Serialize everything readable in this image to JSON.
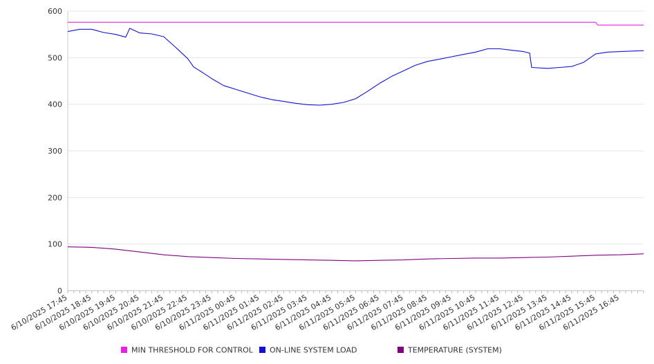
{
  "chart_data": {
    "type": "line",
    "title": "",
    "xlabel": "",
    "ylabel": "",
    "ylim": [
      0,
      600
    ],
    "yticks": [
      0,
      100,
      200,
      300,
      400,
      500,
      600
    ],
    "grid": true,
    "legend_position": "bottom",
    "x_tick_labels": [
      "6/10/2025 17:45",
      "6/10/2025 18:45",
      "6/10/2025 19:45",
      "6/10/2025 20:45",
      "6/10/2025 21:45",
      "6/10/2025 22:45",
      "6/10/2025 23:45",
      "6/11/2025 00:45",
      "6/11/2025 01:45",
      "6/11/2025 02:45",
      "6/11/2025 03:45",
      "6/11/2025 04:45",
      "6/11/2025 05:45",
      "6/11/2025 06:45",
      "6/11/2025 07:45",
      "6/11/2025 08:45",
      "6/11/2025 09:45",
      "6/11/2025 10:45",
      "6/11/2025 11:45",
      "6/11/2025 12:45",
      "6/11/2025 13:45",
      "6/11/2025 14:45",
      "6/11/2025 15:45",
      "6/11/2025 16:45"
    ],
    "x_range": [
      "6/10/2025 17:45",
      "6/11/2025 17:45"
    ],
    "series": [
      {
        "name": "MIN THRESHOLD FOR CONTROL",
        "color": "#e81fe8",
        "points": [
          [
            "6/10/2025 17:45",
            576
          ],
          [
            "6/11/2025 15:45",
            576
          ],
          [
            "6/11/2025 15:50",
            570
          ],
          [
            "6/11/2025 17:45",
            570
          ]
        ]
      },
      {
        "name": "ON-LINE SYSTEM LOAD",
        "color": "#1010d8",
        "points": [
          [
            "6/10/2025 17:45",
            556
          ],
          [
            "6/10/2025 18:15",
            561
          ],
          [
            "6/10/2025 18:45",
            561
          ],
          [
            "6/10/2025 19:15",
            554
          ],
          [
            "6/10/2025 19:45",
            550
          ],
          [
            "6/10/2025 20:10",
            544
          ],
          [
            "6/10/2025 20:20",
            563
          ],
          [
            "6/10/2025 20:45",
            553
          ],
          [
            "6/10/2025 21:15",
            551
          ],
          [
            "6/10/2025 21:45",
            545
          ],
          [
            "6/10/2025 22:15",
            522
          ],
          [
            "6/10/2025 22:45",
            498
          ],
          [
            "6/10/2025 23:00",
            480
          ],
          [
            "6/10/2025 23:15",
            472
          ],
          [
            "6/10/2025 23:45",
            455
          ],
          [
            "6/11/2025 00:15",
            440
          ],
          [
            "6/11/2025 00:45",
            432
          ],
          [
            "6/11/2025 01:15",
            424
          ],
          [
            "6/11/2025 01:45",
            416
          ],
          [
            "6/11/2025 02:15",
            410
          ],
          [
            "6/11/2025 02:45",
            406
          ],
          [
            "6/11/2025 03:15",
            402
          ],
          [
            "6/11/2025 03:45",
            399
          ],
          [
            "6/11/2025 04:15",
            398
          ],
          [
            "6/11/2025 04:45",
            400
          ],
          [
            "6/11/2025 05:15",
            404
          ],
          [
            "6/11/2025 05:45",
            412
          ],
          [
            "6/11/2025 06:15",
            428
          ],
          [
            "6/11/2025 06:45",
            445
          ],
          [
            "6/11/2025 07:15",
            460
          ],
          [
            "6/11/2025 07:45",
            472
          ],
          [
            "6/11/2025 08:15",
            484
          ],
          [
            "6/11/2025 08:45",
            492
          ],
          [
            "6/11/2025 09:15",
            497
          ],
          [
            "6/11/2025 09:45",
            502
          ],
          [
            "6/11/2025 10:15",
            507
          ],
          [
            "6/11/2025 10:45",
            512
          ],
          [
            "6/11/2025 11:15",
            519
          ],
          [
            "6/11/2025 11:45",
            519
          ],
          [
            "6/11/2025 12:15",
            516
          ],
          [
            "6/11/2025 12:45",
            513
          ],
          [
            "6/11/2025 13:00",
            510
          ],
          [
            "6/11/2025 13:05",
            479
          ],
          [
            "6/11/2025 13:45",
            477
          ],
          [
            "6/11/2025 14:15",
            479
          ],
          [
            "6/11/2025 14:45",
            481
          ],
          [
            "6/11/2025 15:15",
            490
          ],
          [
            "6/11/2025 15:45",
            508
          ],
          [
            "6/11/2025 16:15",
            512
          ],
          [
            "6/11/2025 16:45",
            513
          ],
          [
            "6/11/2025 17:45",
            515
          ]
        ]
      },
      {
        "name": "TEMPERATURE (SYSTEM)",
        "color": "#800080",
        "points": [
          [
            "6/10/2025 17:45",
            94
          ],
          [
            "6/10/2025 18:45",
            93
          ],
          [
            "6/10/2025 19:45",
            89
          ],
          [
            "6/10/2025 20:45",
            83
          ],
          [
            "6/10/2025 21:45",
            77
          ],
          [
            "6/10/2025 22:45",
            73
          ],
          [
            "6/10/2025 23:45",
            71
          ],
          [
            "6/11/2025 00:45",
            69
          ],
          [
            "6/11/2025 01:45",
            68
          ],
          [
            "6/11/2025 02:45",
            67
          ],
          [
            "6/11/2025 03:45",
            66
          ],
          [
            "6/11/2025 04:45",
            65
          ],
          [
            "6/11/2025 05:45",
            64
          ],
          [
            "6/11/2025 06:45",
            65
          ],
          [
            "6/11/2025 07:45",
            66
          ],
          [
            "6/11/2025 08:45",
            68
          ],
          [
            "6/11/2025 09:45",
            69
          ],
          [
            "6/11/2025 10:45",
            70
          ],
          [
            "6/11/2025 11:45",
            70
          ],
          [
            "6/11/2025 12:45",
            71
          ],
          [
            "6/11/2025 13:45",
            72
          ],
          [
            "6/11/2025 14:45",
            74
          ],
          [
            "6/11/2025 15:45",
            76
          ],
          [
            "6/11/2025 16:45",
            77
          ],
          [
            "6/11/2025 17:45",
            79
          ]
        ]
      }
    ]
  }
}
